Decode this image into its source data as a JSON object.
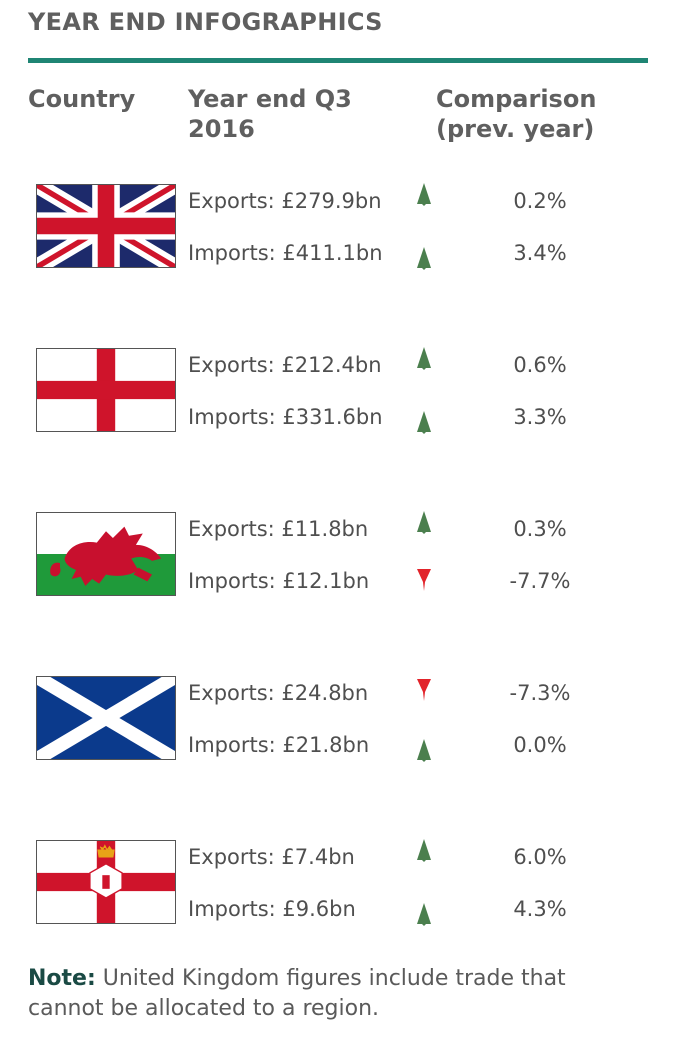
{
  "title": "YEAR END INFOGRAPHICS",
  "headers": {
    "country": "Country",
    "year": "Year end Q3\n2016",
    "comparison": "Comparison\n(prev. year)"
  },
  "colors": {
    "accent": "#1f8574",
    "up": "#4b7f4e",
    "down": "#e2232a"
  },
  "rows": [
    {
      "flag_icon": "uk-flag-icon",
      "exports": {
        "text": "Exports: £279.9bn",
        "trend": "up",
        "change": "0.2%"
      },
      "imports": {
        "text": "Imports: £411.1bn",
        "trend": "up",
        "change": "3.4%"
      }
    },
    {
      "flag_icon": "england-flag-icon",
      "exports": {
        "text": "Exports: £212.4bn",
        "trend": "up",
        "change": "0.6%"
      },
      "imports": {
        "text": "Imports: £331.6bn",
        "trend": "up",
        "change": "3.3%"
      }
    },
    {
      "flag_icon": "wales-flag-icon",
      "exports": {
        "text": "Exports: £11.8bn",
        "trend": "up",
        "change": "0.3%"
      },
      "imports": {
        "text": "Imports: £12.1bn",
        "trend": "down",
        "change": "-7.7%"
      }
    },
    {
      "flag_icon": "scotland-flag-icon",
      "exports": {
        "text": "Exports: £24.8bn",
        "trend": "down",
        "change": "-7.3%"
      },
      "imports": {
        "text": "Imports: £21.8bn",
        "trend": "up",
        "change": "0.0%"
      }
    },
    {
      "flag_icon": "northern-ireland-flag-icon",
      "exports": {
        "text": "Exports: £7.4bn",
        "trend": "up",
        "change": "6.0%"
      },
      "imports": {
        "text": "Imports: £9.6bn",
        "trend": "up",
        "change": "4.3%"
      }
    }
  ],
  "note": {
    "label": "Note:",
    "text": " United Kingdom figures include trade that cannot be allocated to a region."
  }
}
